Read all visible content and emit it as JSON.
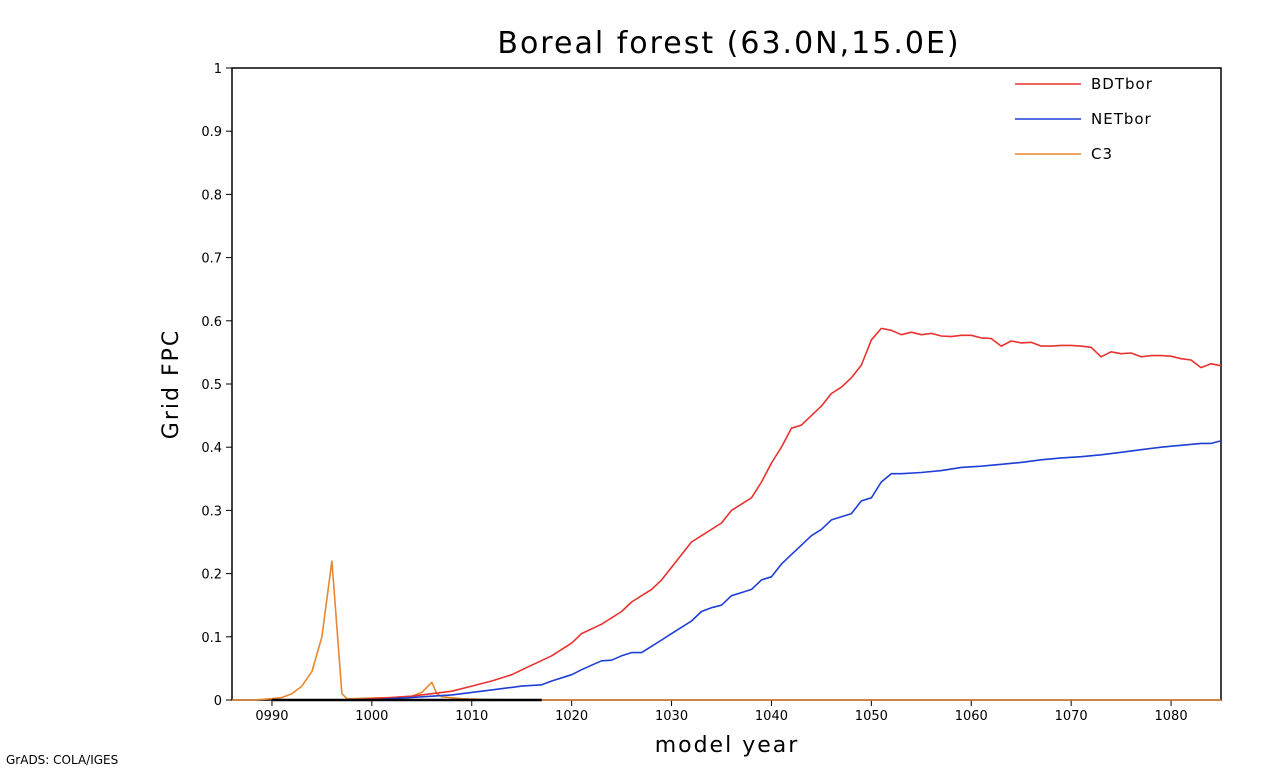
{
  "footer": {
    "credit": "GrADS: COLA/IGES"
  },
  "chart_data": {
    "type": "line",
    "title": "Boreal forest (63.0N,15.0E)",
    "xlabel": "model year",
    "ylabel": "Grid FPC",
    "xlim": [
      986,
      1085
    ],
    "ylim": [
      0,
      1
    ],
    "xticks": [
      {
        "value": 990,
        "label": "0990"
      },
      {
        "value": 1000,
        "label": "1000"
      },
      {
        "value": 1010,
        "label": "1010"
      },
      {
        "value": 1020,
        "label": "1020"
      },
      {
        "value": 1030,
        "label": "1030"
      },
      {
        "value": 1040,
        "label": "1040"
      },
      {
        "value": 1050,
        "label": "1050"
      },
      {
        "value": 1060,
        "label": "1060"
      },
      {
        "value": 1070,
        "label": "1070"
      },
      {
        "value": 1080,
        "label": "1080"
      }
    ],
    "yticks": [
      {
        "value": 0,
        "label": "0"
      },
      {
        "value": 0.1,
        "label": "0.1"
      },
      {
        "value": 0.2,
        "label": "0.2"
      },
      {
        "value": 0.3,
        "label": "0.3"
      },
      {
        "value": 0.4,
        "label": "0.4"
      },
      {
        "value": 0.5,
        "label": "0.5"
      },
      {
        "value": 0.6,
        "label": "0.6"
      },
      {
        "value": 0.7,
        "label": "0.7"
      },
      {
        "value": 0.8,
        "label": "0.8"
      },
      {
        "value": 0.9,
        "label": "0.9"
      },
      {
        "value": 1,
        "label": "1"
      }
    ],
    "grid": false,
    "legend_position": "top-right",
    "series": [
      {
        "name": "BDTbor",
        "color": "#e8322f",
        "points": [
          [
            998,
            0
          ],
          [
            1000,
            0.002
          ],
          [
            1002,
            0.004
          ],
          [
            1004,
            0.006
          ],
          [
            1006,
            0.01
          ],
          [
            1008,
            0.014
          ],
          [
            1010,
            0.022
          ],
          [
            1012,
            0.03
          ],
          [
            1014,
            0.04
          ],
          [
            1016,
            0.055
          ],
          [
            1018,
            0.07
          ],
          [
            1020,
            0.09
          ],
          [
            1021,
            0.105
          ],
          [
            1023,
            0.12
          ],
          [
            1025,
            0.14
          ],
          [
            1026,
            0.155
          ],
          [
            1028,
            0.175
          ],
          [
            1029,
            0.19
          ],
          [
            1030,
            0.21
          ],
          [
            1032,
            0.25
          ],
          [
            1033,
            0.26
          ],
          [
            1035,
            0.28
          ],
          [
            1036,
            0.3
          ],
          [
            1038,
            0.32
          ],
          [
            1039,
            0.345
          ],
          [
            1040,
            0.375
          ],
          [
            1041,
            0.4
          ],
          [
            1042,
            0.43
          ],
          [
            1043,
            0.435
          ],
          [
            1044,
            0.45
          ],
          [
            1045,
            0.465
          ],
          [
            1046,
            0.485
          ],
          [
            1047,
            0.495
          ],
          [
            1048,
            0.51
          ],
          [
            1049,
            0.53
          ],
          [
            1050,
            0.57
          ],
          [
            1051,
            0.588
          ],
          [
            1052,
            0.585
          ],
          [
            1053,
            0.578
          ],
          [
            1054,
            0.582
          ],
          [
            1055,
            0.578
          ],
          [
            1056,
            0.58
          ],
          [
            1057,
            0.576
          ],
          [
            1058,
            0.575
          ],
          [
            1059,
            0.577
          ],
          [
            1060,
            0.577
          ],
          [
            1061,
            0.573
          ],
          [
            1062,
            0.572
          ],
          [
            1063,
            0.56
          ],
          [
            1064,
            0.568
          ],
          [
            1065,
            0.565
          ],
          [
            1066,
            0.566
          ],
          [
            1067,
            0.56
          ],
          [
            1068,
            0.56
          ],
          [
            1069,
            0.561
          ],
          [
            1070,
            0.561
          ],
          [
            1071,
            0.56
          ],
          [
            1072,
            0.558
          ],
          [
            1073,
            0.543
          ],
          [
            1074,
            0.551
          ],
          [
            1075,
            0.548
          ],
          [
            1076,
            0.549
          ],
          [
            1077,
            0.543
          ],
          [
            1078,
            0.545
          ],
          [
            1079,
            0.545
          ],
          [
            1080,
            0.544
          ],
          [
            1081,
            0.54
          ],
          [
            1082,
            0.538
          ],
          [
            1083,
            0.526
          ],
          [
            1084,
            0.532
          ],
          [
            1085,
            0.529
          ]
        ]
      },
      {
        "name": "NETbor",
        "color": "#1e3fd6",
        "points": [
          [
            998,
            0
          ],
          [
            1000,
            0
          ],
          [
            1002,
            0.002
          ],
          [
            1004,
            0.004
          ],
          [
            1006,
            0.006
          ],
          [
            1008,
            0.008
          ],
          [
            1010,
            0.012
          ],
          [
            1012,
            0.016
          ],
          [
            1014,
            0.02
          ],
          [
            1015,
            0.022
          ],
          [
            1017,
            0.024
          ],
          [
            1018,
            0.03
          ],
          [
            1020,
            0.04
          ],
          [
            1021,
            0.048
          ],
          [
            1022,
            0.055
          ],
          [
            1023,
            0.062
          ],
          [
            1024,
            0.063
          ],
          [
            1025,
            0.07
          ],
          [
            1026,
            0.075
          ],
          [
            1027,
            0.075
          ],
          [
            1028,
            0.085
          ],
          [
            1029,
            0.095
          ],
          [
            1030,
            0.105
          ],
          [
            1031,
            0.115
          ],
          [
            1032,
            0.125
          ],
          [
            1033,
            0.14
          ],
          [
            1034,
            0.146
          ],
          [
            1035,
            0.15
          ],
          [
            1036,
            0.165
          ],
          [
            1037,
            0.17
          ],
          [
            1038,
            0.175
          ],
          [
            1039,
            0.19
          ],
          [
            1040,
            0.195
          ],
          [
            1041,
            0.215
          ],
          [
            1042,
            0.23
          ],
          [
            1043,
            0.245
          ],
          [
            1044,
            0.26
          ],
          [
            1045,
            0.27
          ],
          [
            1046,
            0.285
          ],
          [
            1047,
            0.29
          ],
          [
            1048,
            0.295
          ],
          [
            1049,
            0.315
          ],
          [
            1050,
            0.32
          ],
          [
            1051,
            0.345
          ],
          [
            1052,
            0.358
          ],
          [
            1053,
            0.358
          ],
          [
            1055,
            0.36
          ],
          [
            1057,
            0.363
          ],
          [
            1059,
            0.368
          ],
          [
            1061,
            0.37
          ],
          [
            1063,
            0.373
          ],
          [
            1065,
            0.376
          ],
          [
            1067,
            0.38
          ],
          [
            1069,
            0.383
          ],
          [
            1071,
            0.385
          ],
          [
            1073,
            0.388
          ],
          [
            1075,
            0.392
          ],
          [
            1077,
            0.396
          ],
          [
            1079,
            0.4
          ],
          [
            1081,
            0.403
          ],
          [
            1083,
            0.406
          ],
          [
            1084,
            0.406
          ],
          [
            1085,
            0.41
          ]
        ]
      },
      {
        "name": "C3",
        "color": "#e8872e",
        "points": [
          [
            986,
            0
          ],
          [
            988,
            0
          ],
          [
            990,
            0.002
          ],
          [
            991,
            0.004
          ],
          [
            992,
            0.01
          ],
          [
            993,
            0.022
          ],
          [
            994,
            0.045
          ],
          [
            995,
            0.1
          ],
          [
            996,
            0.22
          ],
          [
            997,
            0.01
          ],
          [
            997.5,
            0.002
          ],
          [
            998,
            0.002
          ],
          [
            1000,
            0.003
          ],
          [
            1002,
            0.004
          ],
          [
            1004,
            0.006
          ],
          [
            1005,
            0.012
          ],
          [
            1006,
            0.028
          ],
          [
            1006.5,
            0.01
          ],
          [
            1007,
            0.005
          ],
          [
            1009,
            0.002
          ],
          [
            1011,
            0.001
          ],
          [
            1015,
            0
          ],
          [
            1085,
            0
          ]
        ]
      },
      {
        "name": "",
        "color": "#000000",
        "points": [
          [
            990,
            0
          ],
          [
            1005,
            0
          ],
          [
            1008,
            0
          ],
          [
            1015,
            0
          ],
          [
            1017,
            0
          ]
        ]
      }
    ]
  }
}
